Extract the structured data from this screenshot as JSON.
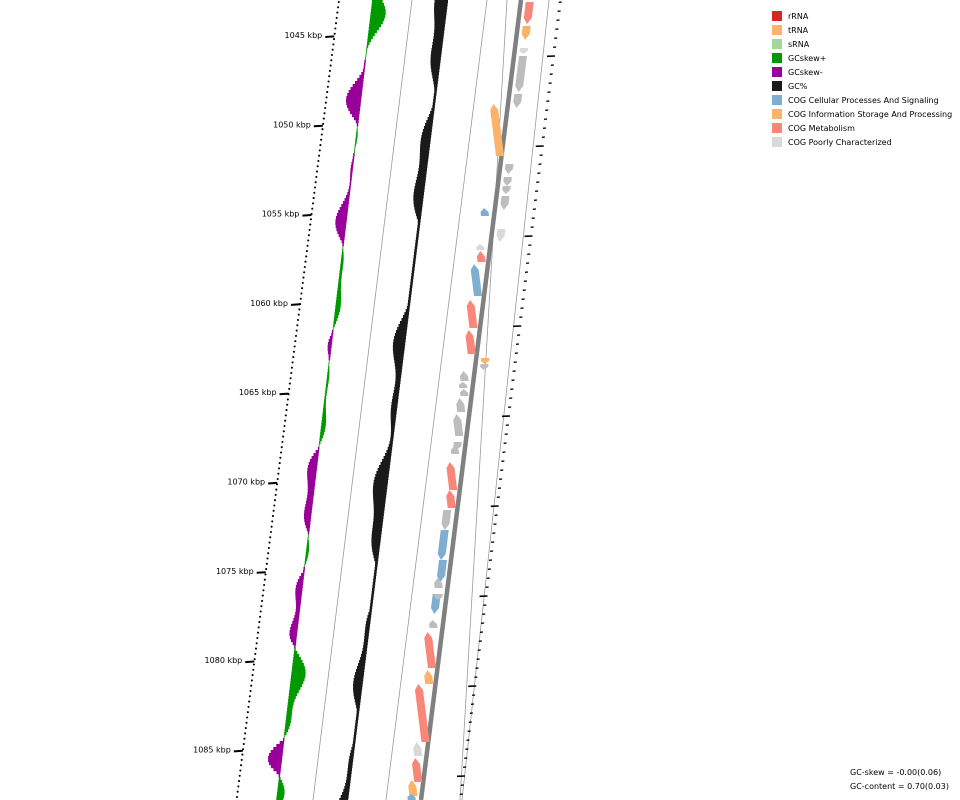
{
  "tick_labels": [
    "1045 kbp",
    "1050 kbp",
    "1055 kbp",
    "1060 kbp",
    "1065 kbp",
    "1070 kbp",
    "1075 kbp",
    "1080 kbp",
    "1085 kbp"
  ],
  "legend": {
    "items": [
      {
        "label": "rRNA",
        "color": "#d62728"
      },
      {
        "label": "tRNA",
        "color": "#fbb36b"
      },
      {
        "label": "sRNA",
        "color": "#a1d99b"
      },
      {
        "label": "GCskew+",
        "color": "#009900"
      },
      {
        "label": "GCskew-",
        "color": "#990099"
      },
      {
        "label": "GC%",
        "color": "#1a1a1a"
      },
      {
        "label": "COG Cellular Processes And Signaling",
        "color": "#80aed1"
      },
      {
        "label": "COG Information Storage And Processing",
        "color": "#fbb36b"
      },
      {
        "label": "COG Metabolism",
        "color": "#f8877a"
      },
      {
        "label": "COG Poorly Characterized",
        "color": "#d9d9d9"
      }
    ]
  },
  "stats": {
    "gc_skew": "GC-skew = -0.00(0.06)",
    "gc_content": "GC-content = 0.70(0.03)"
  }
}
